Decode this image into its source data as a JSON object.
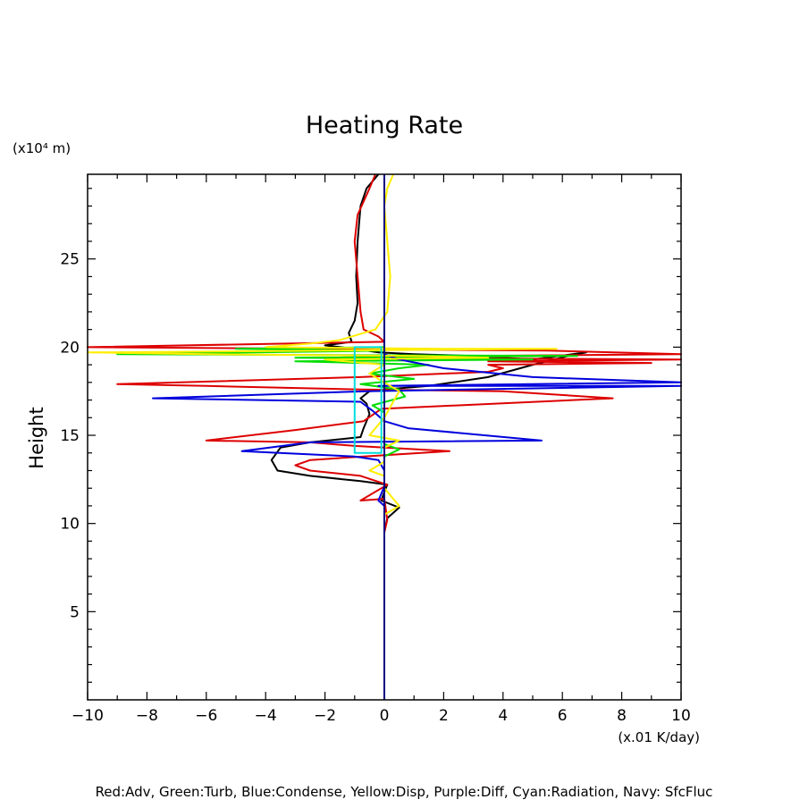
{
  "chart_data": {
    "type": "line",
    "title": "Heating Rate",
    "ylabel": "Height",
    "y_unit": "(x10⁴ m)",
    "x_unit": "(x.01 K/day)",
    "xlim": [
      -10,
      10
    ],
    "ylim": [
      0,
      29.8
    ],
    "x_ticks": [
      "−10",
      "−8",
      "−6",
      "−4",
      "−2",
      "0",
      "2",
      "4",
      "6",
      "8",
      "10"
    ],
    "y_ticks": [
      "5",
      "10",
      "15",
      "20",
      "25"
    ],
    "caption": "Red:Adv, Green:Turb, Blue:Condense, Yellow:Disp, Purple:Diff, Cyan:Radiation, Navy: SfcFluc",
    "colors": {
      "black": "#000000",
      "red": "#dd0000",
      "green": "#00dd00",
      "blue": "#0000dd",
      "yellow": "#ffee00",
      "cyan": "#00dddd",
      "navy": "#000080"
    },
    "series": [
      {
        "color": "black",
        "points": [
          [
            -0.2,
            29.8
          ],
          [
            -0.6,
            29.0
          ],
          [
            -0.8,
            28.0
          ],
          [
            -0.9,
            26.0
          ],
          [
            -0.95,
            24.0
          ],
          [
            -0.9,
            22.5
          ],
          [
            -1.0,
            21.5
          ],
          [
            -1.2,
            20.8
          ],
          [
            -1.1,
            20.3
          ],
          [
            -2.0,
            20.1
          ],
          [
            -1.0,
            19.9
          ],
          [
            -0.2,
            19.7
          ],
          [
            1.0,
            19.6
          ],
          [
            3.0,
            19.5
          ],
          [
            5.0,
            19.3
          ],
          [
            6.8,
            19.7
          ],
          [
            6.2,
            19.5
          ],
          [
            5.0,
            19.0
          ],
          [
            3.5,
            18.3
          ],
          [
            1.5,
            17.8
          ],
          [
            0.0,
            17.6
          ],
          [
            -0.5,
            17.5
          ],
          [
            -0.8,
            17.1
          ],
          [
            -0.6,
            16.8
          ],
          [
            -0.5,
            16.2
          ],
          [
            -0.7,
            15.4
          ],
          [
            -0.8,
            14.9
          ],
          [
            -2.5,
            14.6
          ],
          [
            -3.5,
            14.3
          ],
          [
            -3.8,
            13.6
          ],
          [
            -3.6,
            13.0
          ],
          [
            -2.5,
            12.7
          ],
          [
            -0.8,
            12.4
          ],
          [
            0.1,
            12.2
          ],
          [
            0.0,
            11.8
          ],
          [
            -0.1,
            11.3
          ],
          [
            0.5,
            10.9
          ],
          [
            0.1,
            10.3
          ],
          [
            0.0,
            9.5
          ],
          [
            0.0,
            0
          ]
        ]
      },
      {
        "color": "red",
        "points": [
          [
            -0.3,
            29.8
          ],
          [
            -0.5,
            29.0
          ],
          [
            -0.9,
            27.5
          ],
          [
            -1.0,
            26.0
          ],
          [
            -0.9,
            24.0
          ],
          [
            -0.8,
            22.0
          ],
          [
            -0.7,
            21.0
          ],
          [
            -0.2,
            20.6
          ],
          [
            0.0,
            20.3
          ],
          [
            -10.0,
            20.0
          ],
          [
            -2.0,
            19.9
          ],
          [
            5.5,
            19.8
          ],
          [
            10.0,
            19.6
          ],
          [
            3.0,
            19.5
          ],
          [
            -2.0,
            19.4
          ],
          [
            10.0,
            19.3
          ],
          [
            3.5,
            19.2
          ],
          [
            9.0,
            19.1
          ],
          [
            3.5,
            19.0
          ],
          [
            4.0,
            18.8
          ],
          [
            3.5,
            18.6
          ],
          [
            -0.8,
            18.3
          ],
          [
            -9.0,
            17.9
          ],
          [
            -6.0,
            17.8
          ],
          [
            -0.8,
            17.6
          ],
          [
            4.0,
            17.5
          ],
          [
            7.7,
            17.1
          ],
          [
            -0.1,
            16.5
          ],
          [
            -0.7,
            15.8
          ],
          [
            -3.0,
            15.3
          ],
          [
            -6.0,
            14.7
          ],
          [
            -2.5,
            14.6
          ],
          [
            -1.0,
            14.4
          ],
          [
            2.2,
            14.1
          ],
          [
            -0.7,
            13.8
          ],
          [
            -2.5,
            13.6
          ],
          [
            -3.0,
            13.3
          ],
          [
            -2.5,
            13.0
          ],
          [
            -0.8,
            12.7
          ],
          [
            0.1,
            12.2
          ],
          [
            -0.8,
            11.3
          ],
          [
            0.0,
            11.4
          ],
          [
            0.1,
            10.2
          ],
          [
            0.0,
            9.5
          ]
        ]
      },
      {
        "color": "green",
        "points": [
          [
            0.0,
            20.0
          ],
          [
            -5.0,
            19.9
          ],
          [
            0.0,
            19.8
          ],
          [
            -9.0,
            19.6
          ],
          [
            6.5,
            19.5
          ],
          [
            -3.0,
            19.4
          ],
          [
            5.0,
            19.3
          ],
          [
            -3.0,
            19.2
          ],
          [
            1.5,
            19.0
          ],
          [
            0.5,
            18.8
          ],
          [
            -0.5,
            18.5
          ],
          [
            1.0,
            18.2
          ],
          [
            -0.8,
            17.9
          ],
          [
            0.5,
            17.6
          ],
          [
            0.7,
            17.2
          ],
          [
            -0.4,
            16.7
          ],
          [
            0.0,
            16.3
          ],
          [
            0.0,
            15.2
          ],
          [
            0.0,
            14.5
          ],
          [
            0.5,
            14.2
          ],
          [
            0.0,
            13.8
          ]
        ]
      },
      {
        "color": "blue",
        "points": [
          [
            0.0,
            19.9
          ],
          [
            0.0,
            19.6
          ],
          [
            0.5,
            19.3
          ],
          [
            2.0,
            18.8
          ],
          [
            5.0,
            18.3
          ],
          [
            10.0,
            18.0
          ],
          [
            -0.2,
            17.8
          ],
          [
            10.0,
            17.8
          ],
          [
            -0.6,
            17.5
          ],
          [
            -7.8,
            17.1
          ],
          [
            -0.8,
            16.9
          ],
          [
            -0.4,
            16.4
          ],
          [
            0.0,
            15.8
          ],
          [
            0.8,
            15.4
          ],
          [
            5.3,
            14.7
          ],
          [
            -2.5,
            14.6
          ],
          [
            -4.8,
            14.1
          ],
          [
            -1.0,
            13.8
          ],
          [
            -0.2,
            13.6
          ],
          [
            0.0,
            13.0
          ],
          [
            0.0,
            12.1
          ],
          [
            -0.2,
            11.3
          ],
          [
            0.0,
            11.0
          ],
          [
            0.0,
            0
          ]
        ]
      },
      {
        "color": "yellow",
        "points": [
          [
            0.3,
            29.8
          ],
          [
            0.1,
            29.0
          ],
          [
            0.0,
            28.0
          ],
          [
            0.1,
            26.0
          ],
          [
            0.2,
            24.0
          ],
          [
            0.1,
            22.0
          ],
          [
            -0.3,
            21.0
          ],
          [
            -1.5,
            20.4
          ],
          [
            -2.5,
            20.2
          ],
          [
            -4.0,
            20.0
          ],
          [
            2.0,
            19.9
          ],
          [
            5.8,
            19.9
          ],
          [
            -2.0,
            19.8
          ],
          [
            -10.0,
            19.7
          ],
          [
            -6.0,
            19.6
          ],
          [
            1.0,
            19.5
          ],
          [
            3.5,
            19.4
          ],
          [
            -2.0,
            19.3
          ],
          [
            0.0,
            19.0
          ],
          [
            -0.5,
            18.5
          ],
          [
            0.0,
            18.0
          ],
          [
            0.5,
            17.5
          ],
          [
            0.0,
            16.0
          ],
          [
            -0.5,
            15.0
          ],
          [
            0.5,
            14.7
          ],
          [
            0.0,
            14.3
          ],
          [
            0.0,
            13.5
          ],
          [
            -0.5,
            13.0
          ],
          [
            0.0,
            12.7
          ],
          [
            0.0,
            12.0
          ],
          [
            0.5,
            11.0
          ],
          [
            0.0,
            10.5
          ],
          [
            0.0,
            8.0
          ]
        ]
      },
      {
        "color": "cyan",
        "points": [
          [
            -0.1,
            20.0
          ],
          [
            -1.0,
            20.0
          ],
          [
            -1.0,
            14.0
          ],
          [
            -0.1,
            14.0
          ],
          [
            -0.1,
            20.0
          ]
        ]
      },
      {
        "color": "navy",
        "points": [
          [
            0.0,
            29.8
          ],
          [
            0.0,
            0
          ]
        ]
      }
    ]
  }
}
